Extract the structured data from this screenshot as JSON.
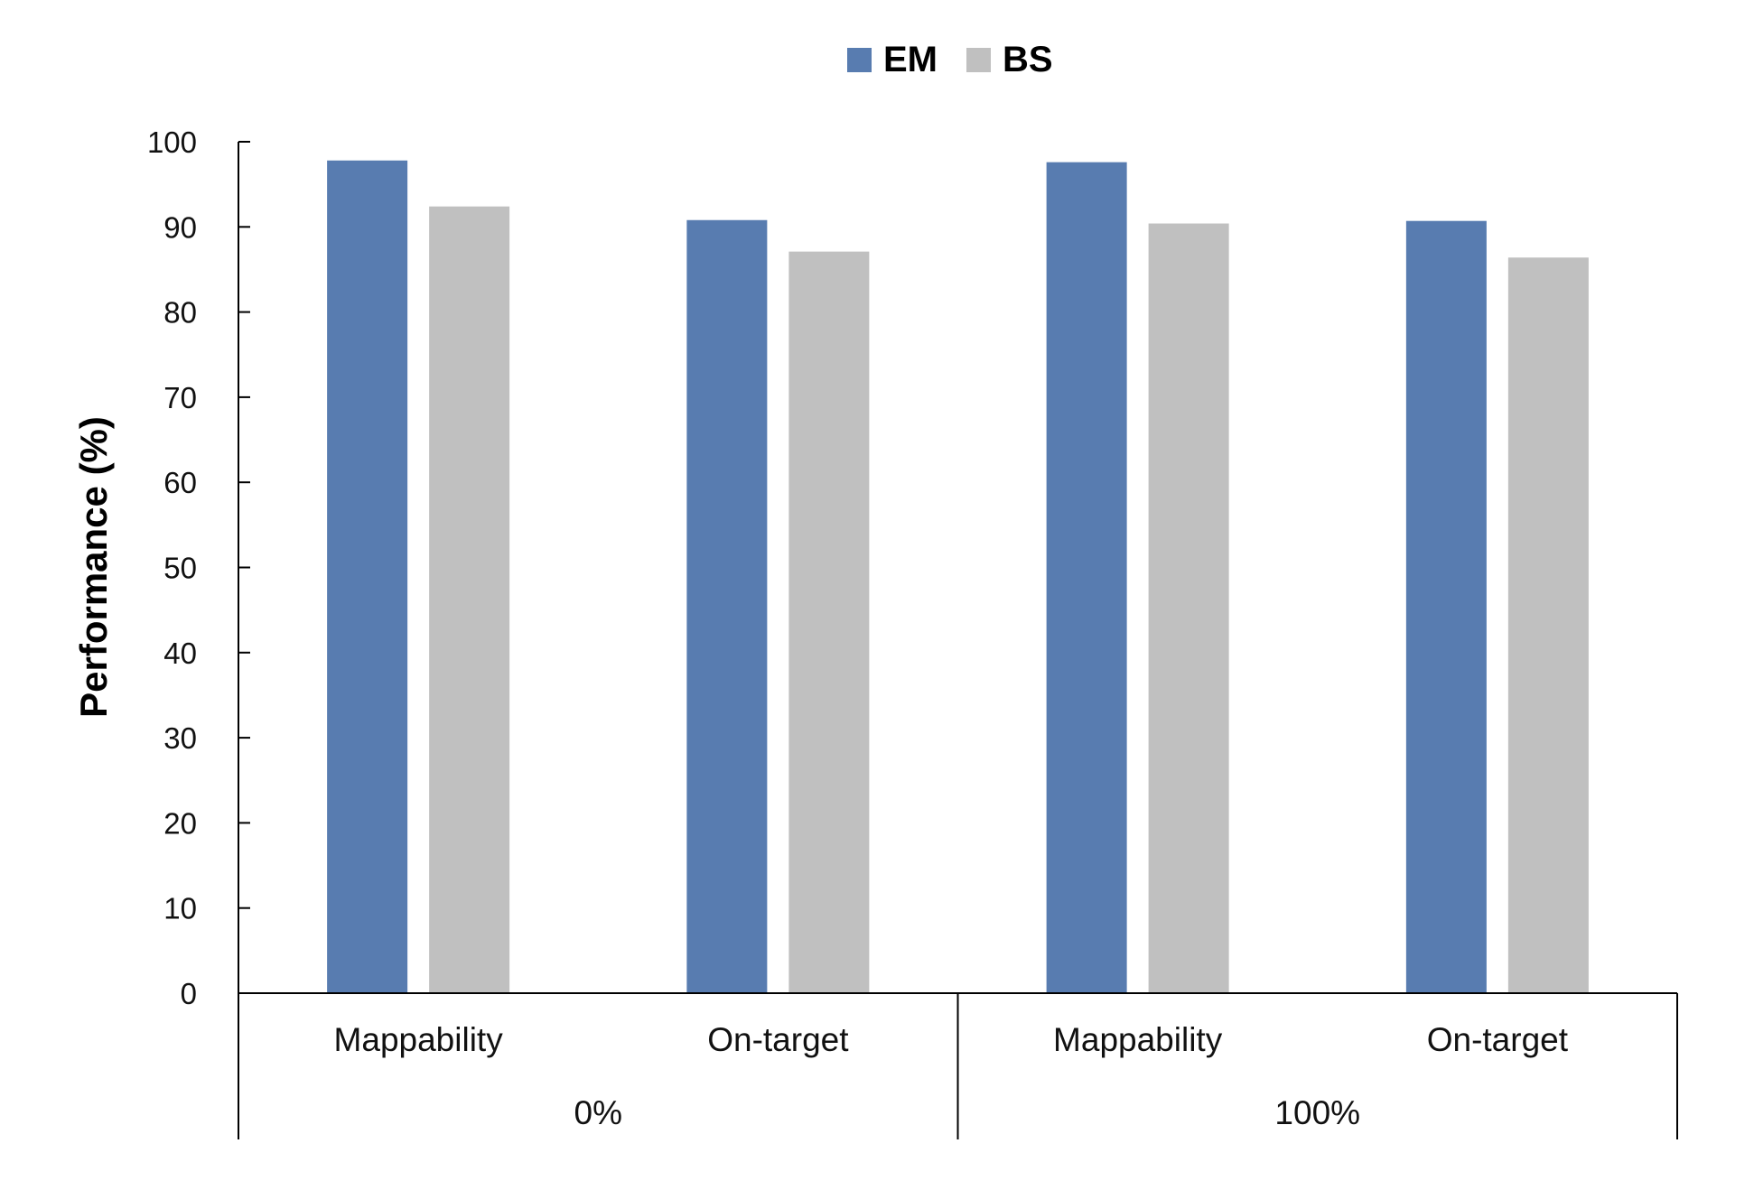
{
  "chart_data": {
    "type": "bar",
    "ylabel": "Performance (%)",
    "ylim": [
      0,
      100
    ],
    "yticks": [
      0,
      10,
      20,
      30,
      40,
      50,
      60,
      70,
      80,
      90,
      100
    ],
    "legend_position": "top-center",
    "groups": [
      {
        "label": "0%",
        "categories": [
          "Mappability",
          "On-target"
        ]
      },
      {
        "label": "100%",
        "categories": [
          "Mappability",
          "On-target"
        ]
      }
    ],
    "categories": [
      "Mappability",
      "On-target",
      "Mappability",
      "On-target"
    ],
    "series": [
      {
        "name": "EM",
        "color": "#587cb0",
        "values": [
          97.8,
          90.8,
          97.6,
          90.7
        ]
      },
      {
        "name": "BS",
        "color": "#c0c0c0",
        "values": [
          92.4,
          87.1,
          90.4,
          86.4
        ]
      }
    ]
  }
}
